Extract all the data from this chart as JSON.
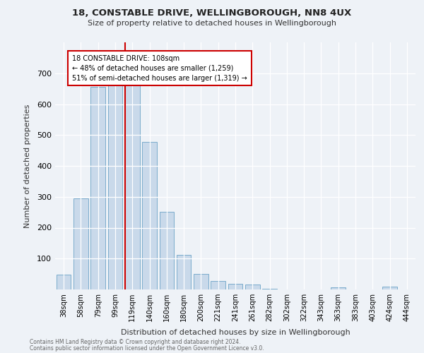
{
  "title1": "18, CONSTABLE DRIVE, WELLINGBOROUGH, NN8 4UX",
  "title2": "Size of property relative to detached houses in Wellingborough",
  "xlabel": "Distribution of detached houses by size in Wellingborough",
  "ylabel": "Number of detached properties",
  "categories": [
    "38sqm",
    "58sqm",
    "79sqm",
    "99sqm",
    "119sqm",
    "140sqm",
    "160sqm",
    "180sqm",
    "200sqm",
    "221sqm",
    "241sqm",
    "261sqm",
    "282sqm",
    "302sqm",
    "322sqm",
    "343sqm",
    "363sqm",
    "383sqm",
    "403sqm",
    "424sqm",
    "444sqm"
  ],
  "values": [
    47,
    295,
    655,
    665,
    665,
    477,
    251,
    111,
    50,
    27,
    18,
    17,
    2,
    0,
    1,
    0,
    8,
    0,
    0,
    10,
    0
  ],
  "bar_color": "#c9d9ea",
  "bar_edge_color": "#7aaccc",
  "vline_color": "#cc0000",
  "annotation_text": "18 CONSTABLE DRIVE: 108sqm\n← 48% of detached houses are smaller (1,259)\n51% of semi-detached houses are larger (1,319) →",
  "annotation_box_color": "#ffffff",
  "annotation_box_edge_color": "#cc0000",
  "ylim": [
    0,
    800
  ],
  "yticks": [
    100,
    200,
    300,
    400,
    500,
    600,
    700
  ],
  "footer1": "Contains HM Land Registry data © Crown copyright and database right 2024.",
  "footer2": "Contains public sector information licensed under the Open Government Licence v3.0.",
  "bg_color": "#eef2f7",
  "plot_bg_color": "#eef2f7"
}
